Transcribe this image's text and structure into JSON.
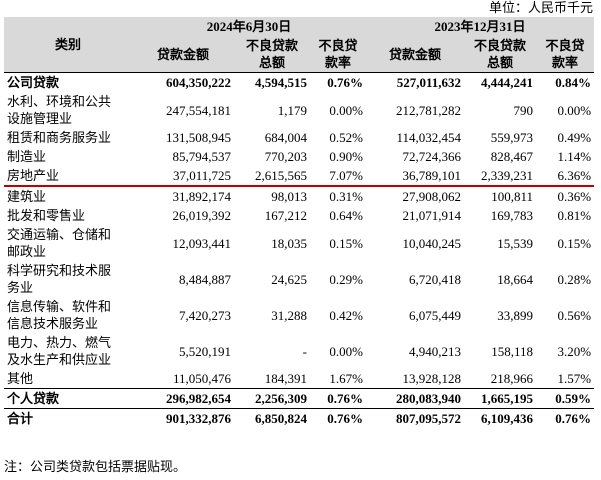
{
  "unit": "单位：人民币千元",
  "table": {
    "header": {
      "category": "类别",
      "periods": [
        "2024年6月30日",
        "2023年12月31日"
      ],
      "columns": [
        "贷款金额",
        "不良贷款总额",
        "不良贷款率",
        "贷款金额",
        "不良贷款总额",
        "不良贷款率"
      ]
    },
    "rows": [
      [
        "公司贷款",
        "604,350,222",
        "4,594,515",
        "0.76%",
        "527,011,632",
        "4,444,241",
        "0.84%"
      ],
      [
        "水利、环境和公共设施管理业",
        "247,554,181",
        "1,179",
        "0.00%",
        "212,781,282",
        "790",
        "0.00%"
      ],
      [
        "租赁和商务服务业",
        "131,508,945",
        "684,004",
        "0.52%",
        "114,032,454",
        "559,973",
        "0.49%"
      ],
      [
        "制造业",
        "85,794,537",
        "770,203",
        "0.90%",
        "72,724,366",
        "828,467",
        "1.14%"
      ],
      [
        "房地产业",
        "37,011,725",
        "2,615,565",
        "7.07%",
        "36,789,101",
        "2,339,231",
        "6.36%"
      ],
      [
        "建筑业",
        "31,892,174",
        "98,013",
        "0.31%",
        "27,908,062",
        "100,811",
        "0.36%"
      ],
      [
        "批发和零售业",
        "26,019,392",
        "167,212",
        "0.64%",
        "21,071,914",
        "169,783",
        "0.81%"
      ],
      [
        "交通运输、仓储和邮政业",
        "12,093,441",
        "18,035",
        "0.15%",
        "10,040,245",
        "15,539",
        "0.15%"
      ],
      [
        "科学研究和技术服务业",
        "8,484,887",
        "24,625",
        "0.29%",
        "6,720,418",
        "18,664",
        "0.28%"
      ],
      [
        "信息传输、软件和信息技术服务业",
        "7,420,273",
        "31,288",
        "0.42%",
        "6,075,449",
        "33,899",
        "0.56%"
      ],
      [
        "电力、热力、燃气及水生产和供应业",
        "5,520,191",
        "-",
        "0.00%",
        "4,940,213",
        "158,118",
        "3.20%"
      ],
      [
        "其他",
        "11,050,476",
        "184,391",
        "1.67%",
        "13,928,128",
        "218,966",
        "1.57%"
      ],
      [
        "个人贷款",
        "296,982,654",
        "2,256,309",
        "0.76%",
        "280,083,940",
        "1,665,195",
        "0.59%"
      ],
      [
        "合计",
        "901,332,876",
        "6,850,824",
        "0.76%",
        "807,095,572",
        "6,109,436",
        "0.76%"
      ]
    ]
  },
  "note": "注：公司类贷款包括票据贴现。"
}
